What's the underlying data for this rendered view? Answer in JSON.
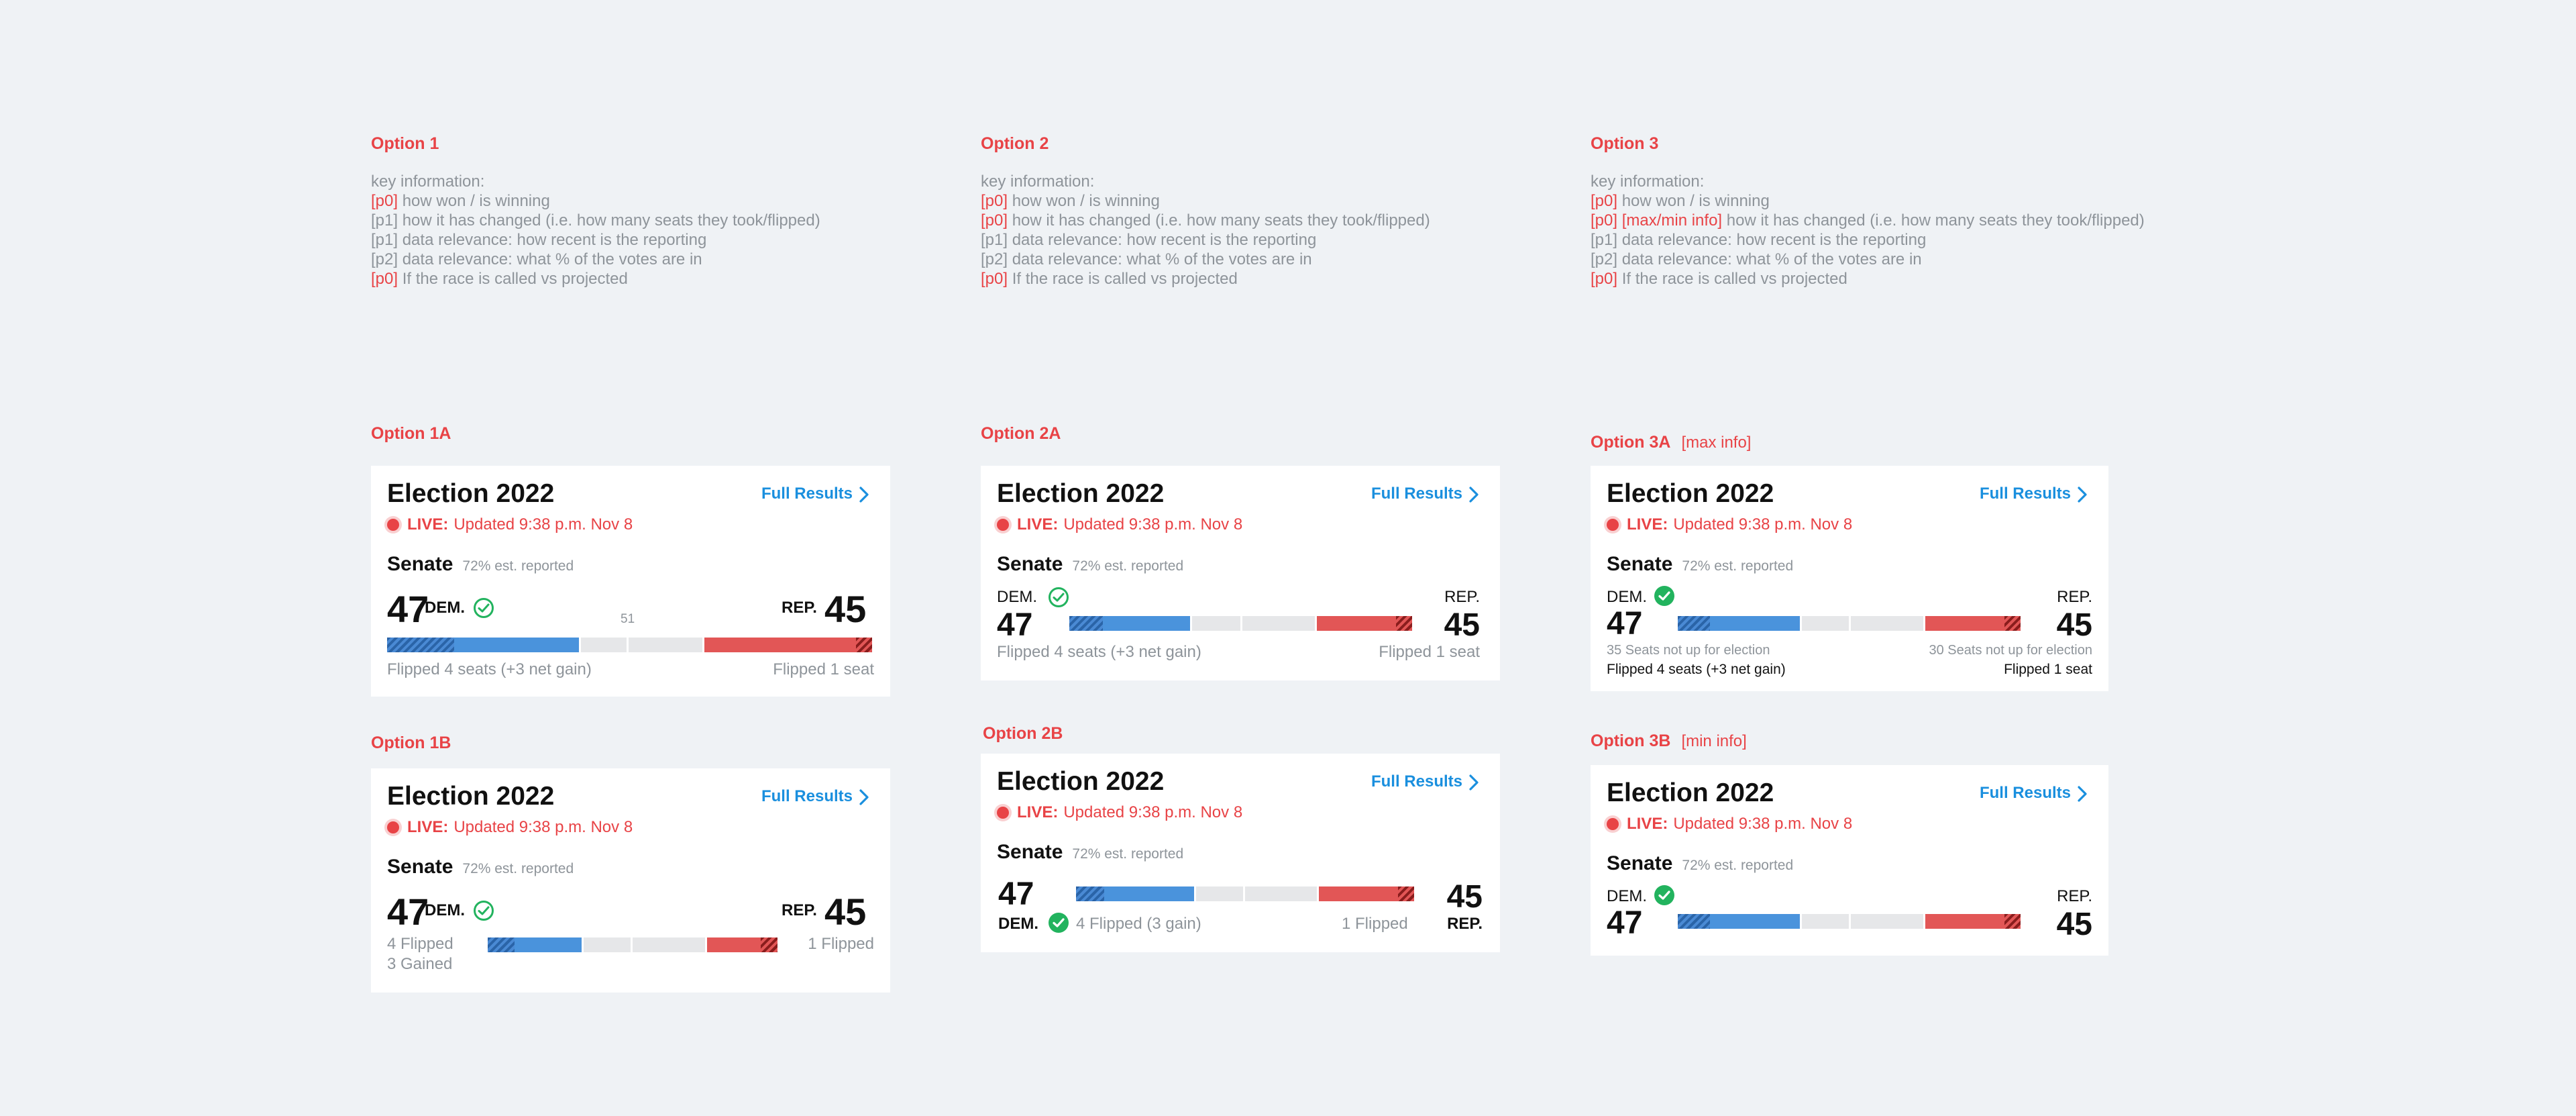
{
  "options": [
    {
      "label": "Option 1",
      "key_title": "key information:",
      "items": [
        {
          "tag": "[p0]",
          "tag_red": true,
          "text": " how won / is winning"
        },
        {
          "tag": "[p1]",
          "tag_red": false,
          "text": " how it has changed (i.e. how many seats they took/flipped)"
        },
        {
          "tag": "[p1]",
          "tag_red": false,
          "text": " data relevance: how recent is the reporting"
        },
        {
          "tag": "[p2]",
          "tag_red": false,
          "text": " data relevance: what % of the votes are in"
        },
        {
          "tag": "[p0]",
          "tag_red": true,
          "text": " If the race is called vs projected"
        }
      ]
    },
    {
      "label": "Option 2",
      "key_title": "key information:",
      "items": [
        {
          "tag": "[p0]",
          "tag_red": true,
          "text": " how won / is winning"
        },
        {
          "tag": "[p0]",
          "tag_red": true,
          "text": " how it has changed (i.e. how many seats they took/flipped)"
        },
        {
          "tag": "[p1]",
          "tag_red": false,
          "text": " data relevance: how recent is the reporting"
        },
        {
          "tag": "[p2]",
          "tag_red": false,
          "text": " data relevance: what % of the votes are in"
        },
        {
          "tag": "[p0]",
          "tag_red": true,
          "text": " If the race is called vs projected"
        }
      ]
    },
    {
      "label": "Option 3",
      "key_title": "key information:",
      "items": [
        {
          "tag": "[p0]",
          "tag_red": true,
          "text": " how won / is winning"
        },
        {
          "tag": "[p0] [max/min info]",
          "tag_red": true,
          "text": " how it has changed (i.e. how many seats they took/flipped)"
        },
        {
          "tag": "[p1]",
          "tag_red": false,
          "text": " data relevance: how recent is the reporting"
        },
        {
          "tag": "[p2]",
          "tag_red": false,
          "text": " data relevance: what % of the votes are in"
        },
        {
          "tag": "[p0]",
          "tag_red": true,
          "text": " If the race is called vs projected"
        }
      ]
    }
  ],
  "common": {
    "title": "Election 2022",
    "full_results": "Full Results",
    "live_label": "LIVE:",
    "live_text": "Updated 9:38 p.m. Nov 8",
    "senate": "Senate",
    "reported": "72% est. reported",
    "dem_seats": "47",
    "rep_seats": "45",
    "dem": "DEM.",
    "rep": "REP.",
    "colors": {
      "accent_red": "#e84346",
      "link_blue": "#1a8fde",
      "dem_blue": "#4a93dc",
      "rep_red": "#e25656",
      "check_green": "#22b35e"
    }
  },
  "c1a": {
    "label": "Option 1A",
    "majority": "51",
    "dem_foot": "Flipped 4 seats (+3 net gain)",
    "rep_foot": "Flipped 1 seat"
  },
  "c1b": {
    "label": "Option 1B",
    "dem_foot1": "4 Flipped",
    "dem_foot2": "3 Gained",
    "rep_foot": "1 Flipped"
  },
  "c2a": {
    "label": "Option 2A",
    "dem_foot": "Flipped 4 seats (+3 net gain)",
    "rep_foot": "Flipped 1 seat"
  },
  "c2b": {
    "label": "Option 2B",
    "dem_foot": "4 Flipped (3 gain)",
    "rep_foot": "1 Flipped"
  },
  "c3a": {
    "label": "Option 3A",
    "sub": "[max info]",
    "dem_note": "35 Seats not up for election",
    "dem_foot": "Flipped 4 seats (+3 net gain)",
    "rep_note": "30 Seats not up for election",
    "rep_foot": "Flipped 1 seat"
  },
  "c3b": {
    "label": "Option 3B",
    "sub": "[min info]"
  }
}
